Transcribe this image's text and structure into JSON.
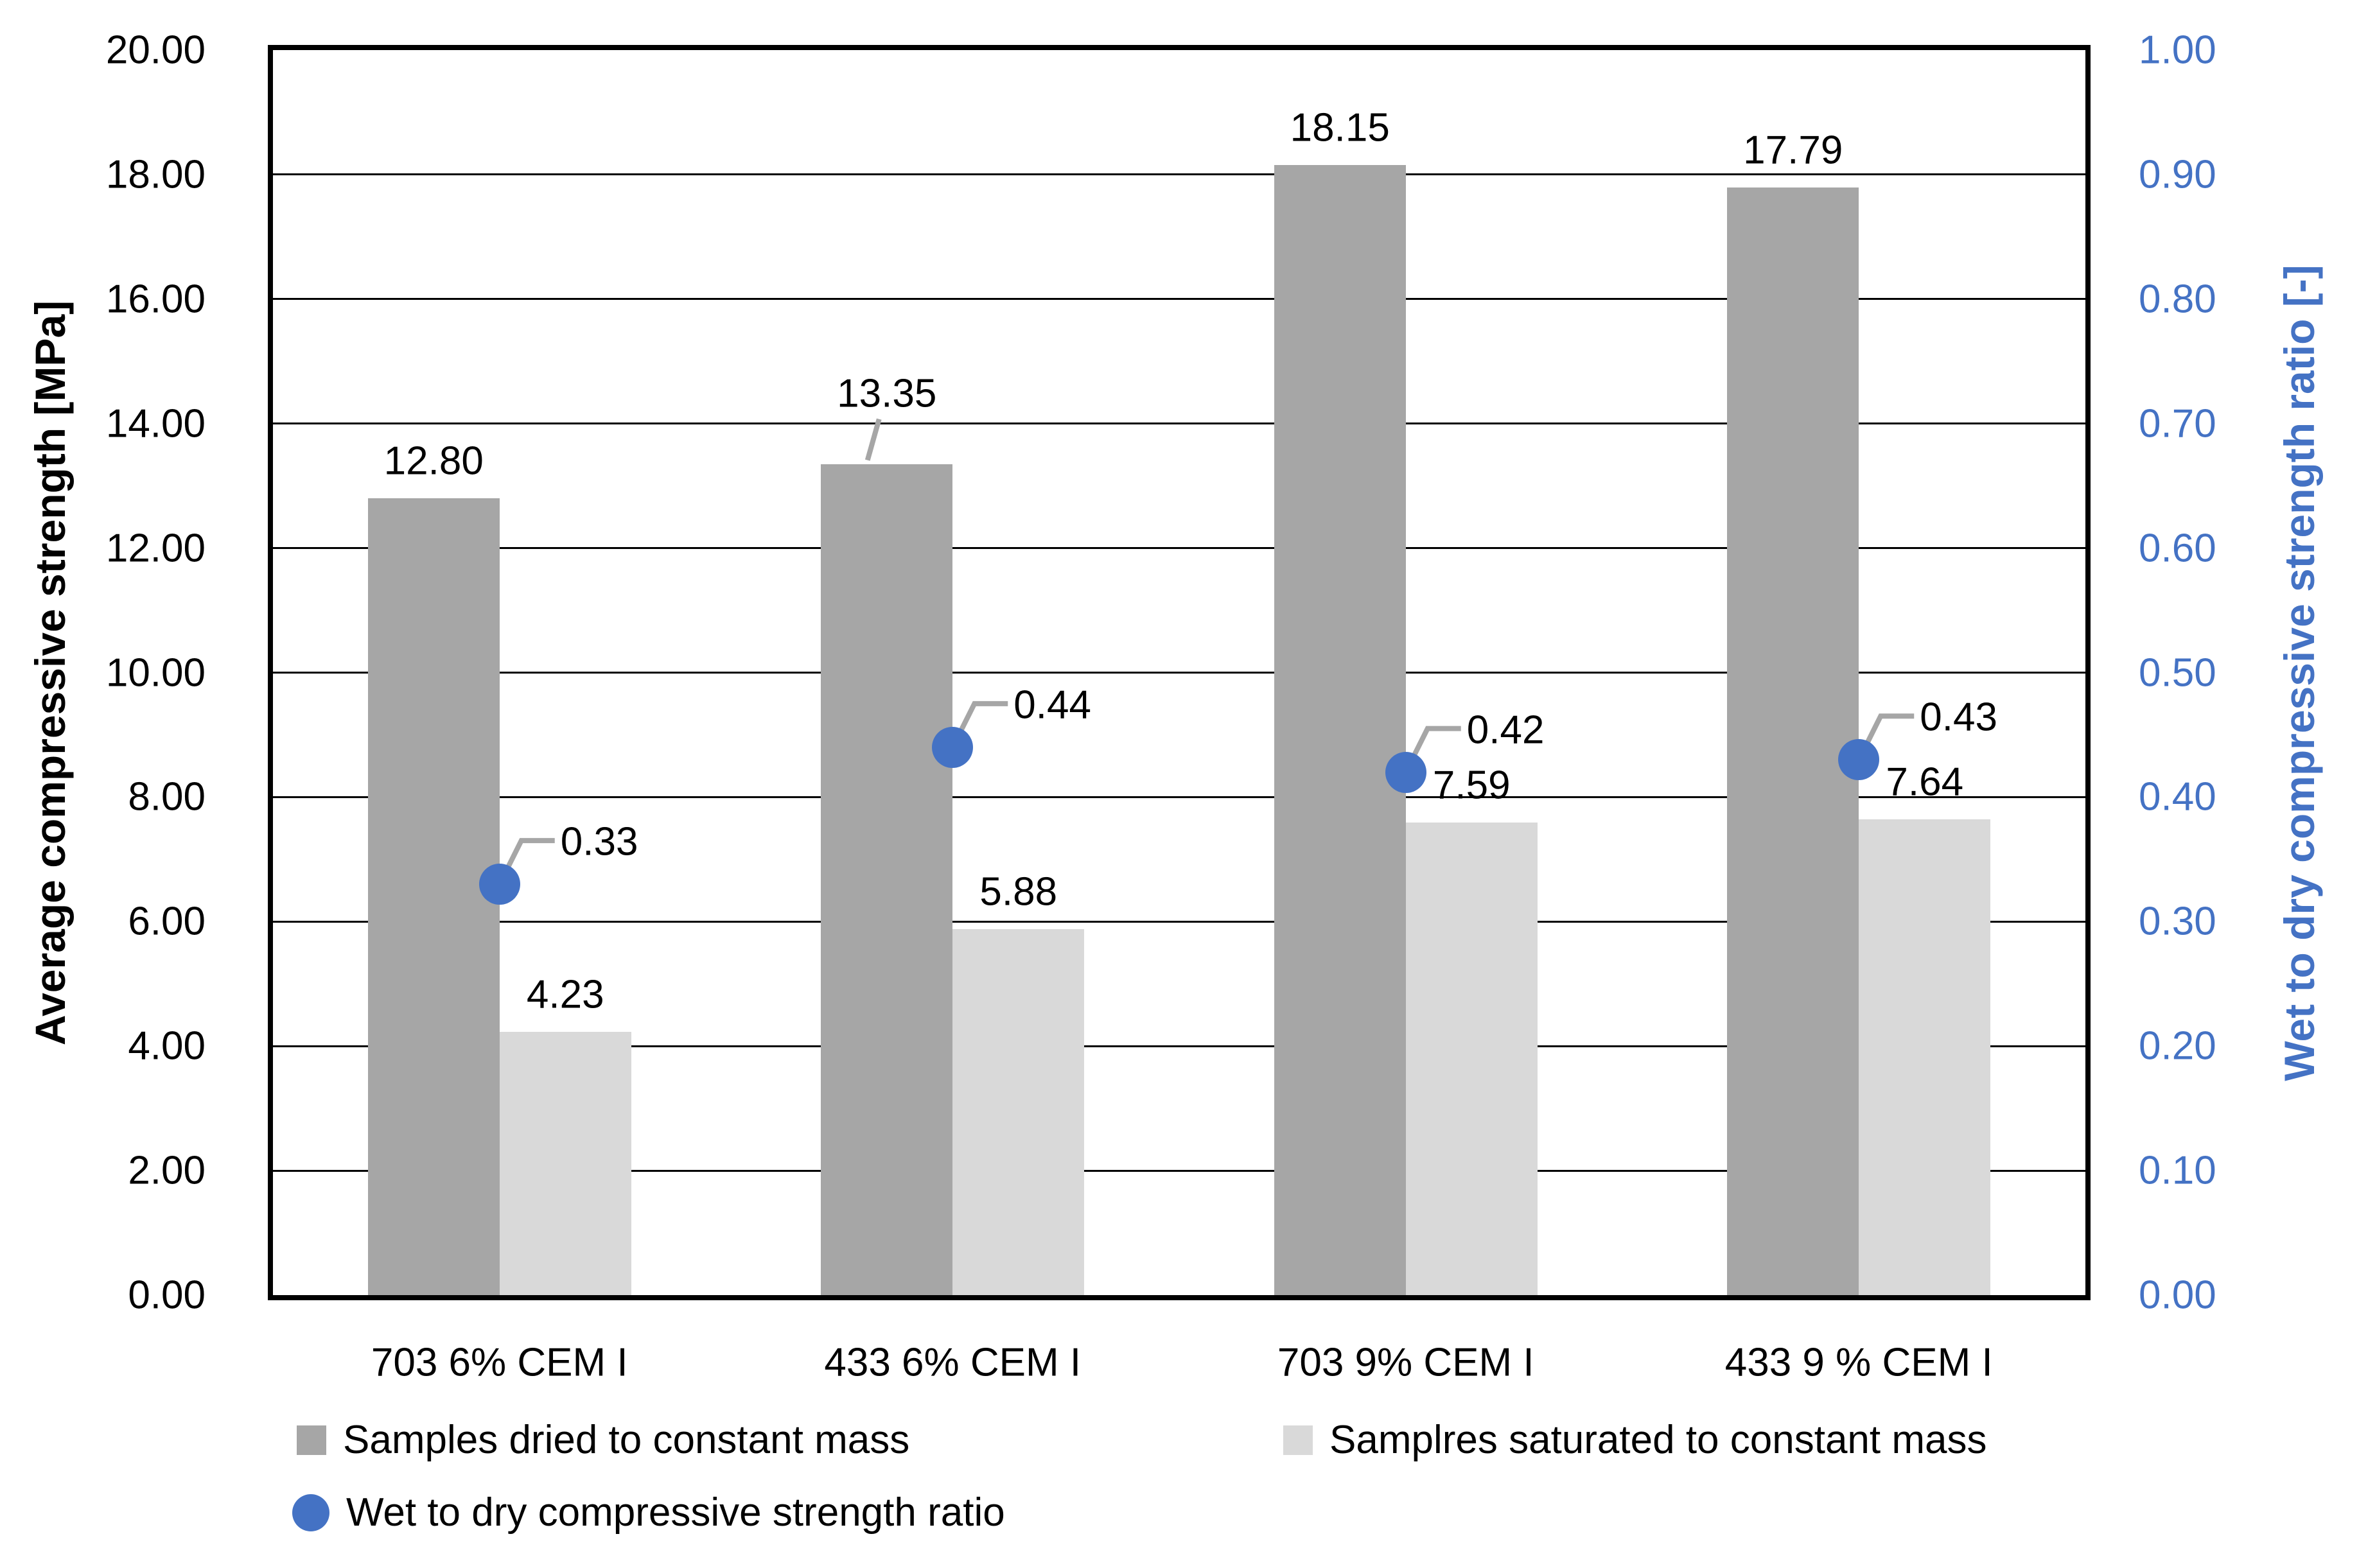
{
  "chart_data": {
    "type": "bar",
    "subtype": "combo-bar-scatter-dual-axis",
    "categories": [
      "703 6% CEM I",
      "433 6% CEM I",
      "703 9% CEM I",
      "433 9 % CEM I"
    ],
    "series": [
      {
        "name": "Samples dried to constant mass",
        "type": "bar",
        "axis": "left",
        "color": "#A6A6A6",
        "values": [
          12.8,
          13.35,
          18.15,
          17.79
        ],
        "labels": [
          "12.80",
          "13.35",
          "18.15",
          "17.79"
        ],
        "label_leaders": [
          false,
          true,
          false,
          false
        ]
      },
      {
        "name": "Samplres saturated to constant mass",
        "type": "bar",
        "axis": "left",
        "color": "#D9D9D9",
        "values": [
          4.23,
          5.88,
          7.59,
          7.64
        ],
        "labels": [
          "4.23",
          "5.88",
          "7.59",
          "7.64"
        ],
        "label_leaders": [
          false,
          false,
          false,
          false
        ]
      },
      {
        "name": "Wet to dry compressive strength ratio",
        "type": "scatter",
        "axis": "right",
        "color": "#4472C4",
        "values": [
          0.33,
          0.44,
          0.42,
          0.43
        ],
        "labels": [
          "0.33",
          "0.44",
          "0.42",
          "0.43"
        ],
        "label_leaders": [
          true,
          true,
          true,
          true
        ]
      }
    ],
    "left_axis": {
      "title": "Average compressive strength [MPa]",
      "min": 0,
      "max": 20,
      "step": 2,
      "color": "#000000",
      "tick_labels": [
        "0.00",
        "2.00",
        "4.00",
        "6.00",
        "8.00",
        "10.00",
        "12.00",
        "14.00",
        "16.00",
        "18.00",
        "20.00"
      ]
    },
    "right_axis": {
      "title": "Wet to dry compressive strength ratio [-]",
      "min": 0,
      "max": 1,
      "step": 0.1,
      "color": "#4472C4",
      "tick_labels": [
        "0.00",
        "0.10",
        "0.20",
        "0.30",
        "0.40",
        "0.50",
        "0.60",
        "0.70",
        "0.80",
        "0.90",
        "1.00"
      ]
    },
    "grid": true,
    "gridline_color": "#000000",
    "plot_border_color": "#000000",
    "leader_line_color": "#A6A6A6",
    "background_color": "#FFFFFF",
    "legend_position": "bottom"
  }
}
